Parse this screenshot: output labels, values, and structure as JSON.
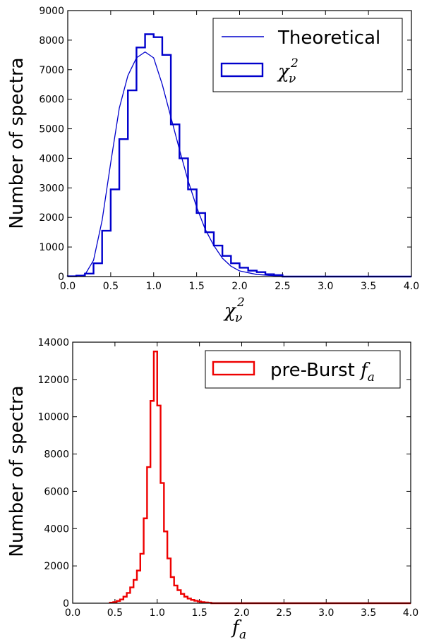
{
  "chart_data": [
    {
      "type": "line",
      "xlabel": "χν²",
      "ylabel": "Number of spectra",
      "xlim": [
        0.0,
        4.0
      ],
      "ylim": [
        0,
        9000
      ],
      "xticks": [
        "0.0",
        "0.5",
        "1.0",
        "1.5",
        "2.0",
        "2.5",
        "3.0",
        "3.5",
        "4.0"
      ],
      "yticks": [
        "0",
        "1000",
        "2000",
        "3000",
        "4000",
        "5000",
        "6000",
        "7000",
        "8000",
        "9000"
      ],
      "legend_position": "top-right",
      "series": [
        {
          "name": "Theoretical",
          "style": "thin-line",
          "color": "#0000cc",
          "x": [
            0.0,
            0.1,
            0.2,
            0.3,
            0.4,
            0.5,
            0.6,
            0.7,
            0.8,
            0.9,
            1.0,
            1.1,
            1.2,
            1.3,
            1.4,
            1.5,
            1.6,
            1.7,
            1.8,
            1.9,
            2.0,
            2.2,
            2.5,
            3.0,
            3.5,
            4.0
          ],
          "y": [
            0,
            0,
            60,
            550,
            1900,
            3850,
            5700,
            6800,
            7400,
            7600,
            7400,
            6500,
            5400,
            4300,
            3250,
            2350,
            1600,
            1050,
            620,
            350,
            190,
            70,
            10,
            0,
            0,
            0
          ]
        },
        {
          "name": "χν²",
          "style": "step-histogram",
          "color": "#0000cc",
          "bin_width": 0.1,
          "bin_starts": [
            0.0,
            0.1,
            0.2,
            0.3,
            0.4,
            0.5,
            0.6,
            0.7,
            0.8,
            0.9,
            1.0,
            1.1,
            1.2,
            1.3,
            1.4,
            1.5,
            1.6,
            1.7,
            1.8,
            1.9,
            2.0,
            2.1,
            2.2,
            2.3,
            2.4
          ],
          "counts": [
            10,
            30,
            100,
            450,
            1550,
            2950,
            4650,
            6300,
            7750,
            8200,
            8100,
            7500,
            5150,
            4000,
            2950,
            2150,
            1500,
            1050,
            700,
            450,
            300,
            200,
            150,
            80,
            50
          ]
        }
      ]
    },
    {
      "type": "bar",
      "xlabel": "fa",
      "ylabel": "Number of spectra",
      "xlim": [
        0.0,
        4.0
      ],
      "ylim": [
        0,
        14000
      ],
      "xticks": [
        "0.0",
        "0.5",
        "1.0",
        "1.5",
        "2.0",
        "2.5",
        "3.0",
        "3.5",
        "4.0"
      ],
      "yticks": [
        "0",
        "2000",
        "4000",
        "6000",
        "8000",
        "10000",
        "12000",
        "14000"
      ],
      "legend_position": "top-right",
      "series": [
        {
          "name": "pre-Burst fa",
          "style": "step-histogram",
          "color": "#ee0000",
          "bin_width": 0.04,
          "bin_starts": [
            0.44,
            0.48,
            0.52,
            0.56,
            0.6,
            0.64,
            0.68,
            0.72,
            0.76,
            0.8,
            0.84,
            0.88,
            0.92,
            0.96,
            1.0,
            1.04,
            1.08,
            1.12,
            1.16,
            1.2,
            1.24,
            1.28,
            1.32,
            1.36,
            1.4,
            1.44,
            1.48,
            1.52,
            1.56,
            1.6
          ],
          "counts": [
            30,
            60,
            120,
            200,
            350,
            550,
            850,
            1250,
            1750,
            2650,
            4550,
            7300,
            10850,
            13500,
            10600,
            6450,
            3850,
            2400,
            1400,
            950,
            700,
            500,
            350,
            250,
            180,
            130,
            90,
            60,
            40,
            25
          ]
        }
      ]
    }
  ]
}
